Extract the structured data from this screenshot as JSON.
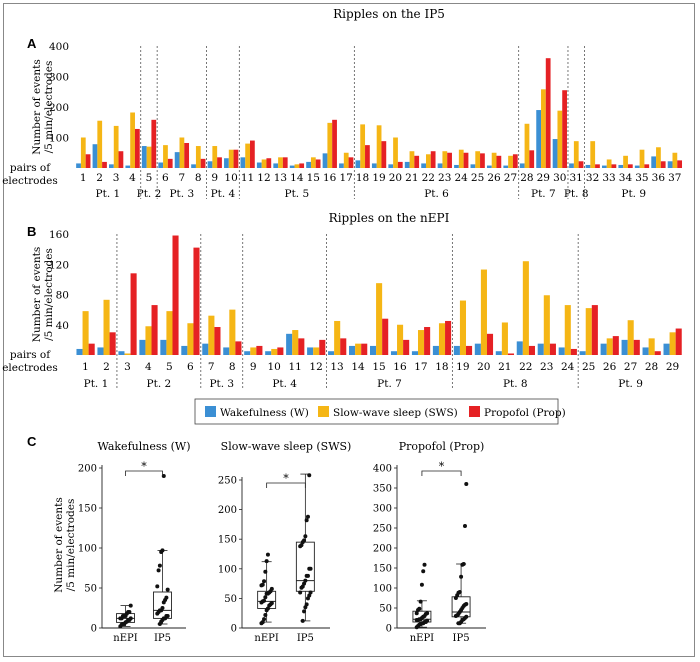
{
  "colors": {
    "wake": "#3b8fd4",
    "sws": "#f5b615",
    "prop": "#e52124"
  },
  "chart_data": [
    {
      "panel": "A",
      "type": "bar",
      "title": "Ripples on the IP5",
      "ylabel": "Number of events /5 min/electrodes",
      "xlabel": "pairs of electrodes",
      "ylim": [
        0,
        400
      ],
      "yticks": [
        "400",
        "300",
        "200",
        "100"
      ],
      "categories": [
        "1",
        "2",
        "3",
        "4",
        "5",
        "6",
        "7",
        "8",
        "9",
        "10",
        "11",
        "12",
        "13",
        "14",
        "15",
        "16",
        "17",
        "18",
        "19",
        "20",
        "21",
        "22",
        "23",
        "24",
        "25",
        "26",
        "27",
        "28",
        "29",
        "30",
        "31",
        "32",
        "33",
        "34",
        "35",
        "36",
        "37"
      ],
      "series": [
        {
          "name": "Wakefulness (W)",
          "values": [
            15,
            78,
            12,
            8,
            72,
            18,
            52,
            12,
            22,
            32,
            35,
            18,
            15,
            8,
            20,
            48,
            15,
            25,
            15,
            12,
            20,
            15,
            15,
            10,
            12,
            8,
            8,
            15,
            190,
            95,
            15,
            10,
            8,
            10,
            8,
            38,
            22
          ]
        },
        {
          "name": "Slow-wave sleep (SWS)",
          "values": [
            100,
            155,
            138,
            182,
            70,
            75,
            100,
            72,
            72,
            60,
            80,
            28,
            35,
            12,
            35,
            148,
            50,
            143,
            140,
            100,
            55,
            45,
            55,
            60,
            55,
            50,
            40,
            145,
            258,
            188,
            88,
            88,
            28,
            40,
            60,
            68,
            50
          ]
        },
        {
          "name": "Propofol (Prop)",
          "values": [
            45,
            20,
            55,
            128,
            158,
            30,
            82,
            30,
            35,
            60,
            90,
            32,
            35,
            15,
            28,
            158,
            35,
            75,
            88,
            20,
            40,
            55,
            50,
            50,
            48,
            40,
            45,
            58,
            360,
            255,
            22,
            12,
            12,
            12,
            12,
            22,
            25
          ]
        }
      ],
      "groups": [
        {
          "label": "Pt. 1",
          "start": 1,
          "end": 4
        },
        {
          "label": "Pt. 2",
          "start": 5,
          "end": 5
        },
        {
          "label": "Pt. 3",
          "start": 6,
          "end": 8
        },
        {
          "label": "Pt. 4",
          "start": 9,
          "end": 10
        },
        {
          "label": "Pt. 5",
          "start": 11,
          "end": 17
        },
        {
          "label": "Pt. 6",
          "start": 18,
          "end": 27
        },
        {
          "label": "Pt. 7",
          "start": 28,
          "end": 30
        },
        {
          "label": "Pt. 8",
          "start": 31,
          "end": 31
        },
        {
          "label": "Pt. 9",
          "start": 32,
          "end": 37
        }
      ]
    },
    {
      "panel": "B",
      "type": "bar",
      "title": "Ripples on the nEPI",
      "ylabel": "Number of events /5 min/electrodes",
      "xlabel": "pairs of electrodes",
      "ylim": [
        0,
        160
      ],
      "yticks": [
        "160",
        "120",
        "80",
        "40"
      ],
      "categories": [
        "1",
        "2",
        "3",
        "4",
        "5",
        "6",
        "7",
        "8",
        "9",
        "10",
        "11",
        "12",
        "13",
        "14",
        "15",
        "16",
        "17",
        "18",
        "19",
        "20",
        "21",
        "22",
        "23",
        "24",
        "25",
        "26",
        "27",
        "28",
        "29"
      ],
      "series": [
        {
          "name": "Wakefulness (W)",
          "values": [
            8,
            10,
            5,
            20,
            20,
            12,
            15,
            10,
            5,
            5,
            28,
            10,
            5,
            12,
            12,
            5,
            5,
            12,
            12,
            15,
            5,
            18,
            15,
            10,
            5,
            15,
            20,
            10,
            15
          ]
        },
        {
          "name": "Slow-wave sleep (SWS)",
          "values": [
            58,
            73,
            2,
            38,
            58,
            42,
            52,
            60,
            10,
            8,
            33,
            10,
            45,
            15,
            95,
            40,
            33,
            42,
            72,
            113,
            43,
            124,
            79,
            66,
            62,
            22,
            46,
            22,
            30
          ]
        },
        {
          "name": "Propofol (Prop)",
          "values": [
            15,
            30,
            108,
            66,
            158,
            142,
            37,
            18,
            12,
            10,
            22,
            20,
            22,
            15,
            48,
            20,
            37,
            45,
            12,
            28,
            2,
            12,
            15,
            8,
            66,
            25,
            20,
            5,
            35
          ]
        }
      ],
      "groups": [
        {
          "label": "Pt. 1",
          "start": 1,
          "end": 2
        },
        {
          "label": "Pt. 2",
          "start": 3,
          "end": 6
        },
        {
          "label": "Pt. 3",
          "start": 7,
          "end": 8
        },
        {
          "label": "Pt. 4",
          "start": 9,
          "end": 12
        },
        {
          "label": "Pt. 7",
          "start": 13,
          "end": 18
        },
        {
          "label": "Pt. 8",
          "start": 19,
          "end": 24
        },
        {
          "label": "Pt. 9",
          "start": 25,
          "end": 29
        }
      ]
    },
    {
      "panel": "C",
      "type": "box",
      "title": "Wakefulness (W)",
      "ylabel": "Number of events /5 min/electrodes",
      "categories": [
        "nEPI",
        "IP5"
      ],
      "ylim": [
        0,
        200
      ],
      "yticks": [
        0,
        50,
        100,
        150,
        200
      ],
      "significance": "*",
      "boxes": [
        {
          "q1": 7,
          "median": 12,
          "q3": 18,
          "whisker_low": 2,
          "whisker_high": 28,
          "points": [
            2,
            4,
            5,
            5,
            7,
            8,
            10,
            10,
            12,
            12,
            12,
            15,
            15,
            15,
            18,
            20,
            20,
            28
          ]
        },
        {
          "q1": 12,
          "median": 22,
          "q3": 45,
          "whisker_low": 5,
          "whisker_high": 97,
          "points": [
            5,
            8,
            10,
            12,
            12,
            15,
            15,
            18,
            20,
            22,
            22,
            25,
            32,
            35,
            38,
            48,
            52,
            72,
            78,
            95,
            97,
            190
          ]
        }
      ]
    },
    {
      "panel": "C",
      "type": "box",
      "title": "Slow-wave sleep (SWS)",
      "categories": [
        "nEPI",
        "IP5"
      ],
      "ylim": [
        0,
        250
      ],
      "yticks": [
        0,
        50,
        100,
        150,
        200,
        250
      ],
      "significance": "*",
      "boxes": [
        {
          "q1": 33,
          "median": 45,
          "q3": 62,
          "whisker_low": 10,
          "whisker_high": 112,
          "points": [
            8,
            10,
            15,
            22,
            30,
            33,
            38,
            40,
            42,
            43,
            45,
            46,
            52,
            58,
            58,
            60,
            62,
            66,
            72,
            73,
            79,
            95,
            113,
            124
          ]
        },
        {
          "q1": 62,
          "median": 80,
          "q3": 145,
          "whisker_low": 12,
          "whisker_high": 260,
          "points": [
            12,
            28,
            35,
            40,
            50,
            55,
            60,
            60,
            68,
            70,
            75,
            80,
            88,
            88,
            100,
            100,
            138,
            140,
            145,
            148,
            155,
            182,
            188,
            258
          ]
        }
      ]
    },
    {
      "panel": "C",
      "type": "box",
      "title": "Propofol (Prop)",
      "categories": [
        "nEPI",
        "IP5"
      ],
      "ylim": [
        0,
        400
      ],
      "yticks": [
        0,
        50,
        100,
        150,
        200,
        250,
        300,
        350,
        400
      ],
      "significance": "*",
      "boxes": [
        {
          "q1": 15,
          "median": 22,
          "q3": 42,
          "whisker_low": 2,
          "whisker_high": 68,
          "points": [
            2,
            5,
            8,
            10,
            12,
            12,
            15,
            15,
            18,
            20,
            20,
            22,
            22,
            25,
            28,
            30,
            35,
            37,
            37,
            45,
            48,
            66,
            108,
            142,
            158
          ]
        },
        {
          "q1": 28,
          "median": 40,
          "q3": 78,
          "whisker_low": 12,
          "whisker_high": 160,
          "points": [
            12,
            12,
            15,
            20,
            22,
            25,
            28,
            30,
            32,
            35,
            40,
            45,
            50,
            55,
            58,
            60,
            75,
            82,
            88,
            90,
            128,
            158,
            160,
            255,
            360
          ]
        }
      ]
    }
  ],
  "legend": {
    "items": [
      {
        "label": "Wakefulness (W)",
        "color_key": "wake"
      },
      {
        "label": "Slow-wave sleep (SWS)",
        "color_key": "sws"
      },
      {
        "label": "Propofol (Prop)",
        "color_key": "prop"
      }
    ]
  }
}
